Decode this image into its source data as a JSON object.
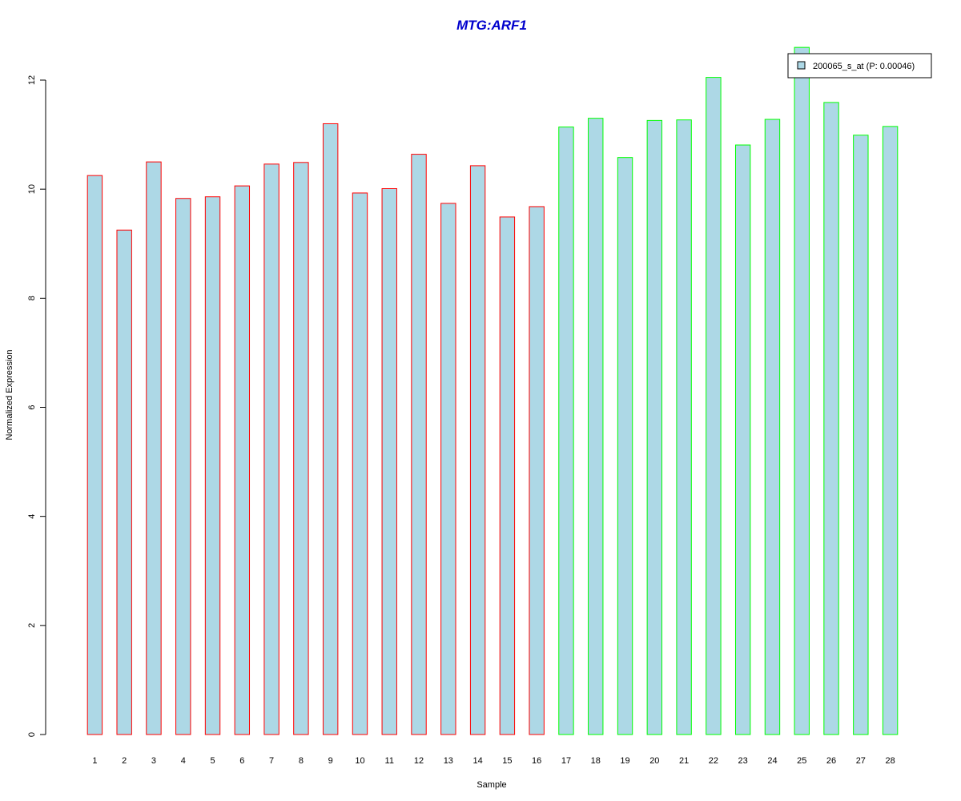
{
  "chart_data": {
    "type": "bar",
    "title": "MTG:ARF1",
    "xlabel": "Sample",
    "ylabel": "Normalized Expression",
    "categories": [
      "1",
      "2",
      "3",
      "4",
      "5",
      "6",
      "7",
      "8",
      "9",
      "10",
      "11",
      "12",
      "13",
      "14",
      "15",
      "16",
      "17",
      "18",
      "19",
      "20",
      "21",
      "22",
      "23",
      "24",
      "25",
      "26",
      "27",
      "28"
    ],
    "series": [
      {
        "name": "200065_s_at (P: 0.00046)",
        "values": [
          10.25,
          9.25,
          10.5,
          9.83,
          9.86,
          10.06,
          10.46,
          10.49,
          11.2,
          9.93,
          10.01,
          10.64,
          9.74,
          10.43,
          9.49,
          9.68,
          11.14,
          11.3,
          10.58,
          11.26,
          11.27,
          12.05,
          10.81,
          11.28,
          12.6,
          11.59,
          10.99,
          11.15
        ]
      }
    ],
    "group_outline": [
      "red",
      "red",
      "red",
      "red",
      "red",
      "red",
      "red",
      "red",
      "red",
      "red",
      "red",
      "red",
      "red",
      "red",
      "red",
      "red",
      "green",
      "green",
      "green",
      "green",
      "green",
      "green",
      "green",
      "green",
      "green",
      "green",
      "green",
      "green"
    ],
    "ylim": [
      0,
      12
    ],
    "yticks": [
      "0",
      "2",
      "4",
      "6",
      "8",
      "10",
      "12"
    ],
    "grid": false,
    "legend_position": "top-right",
    "colors": {
      "bar_fill": "#add8e6",
      "outline_group1": "#ff0000",
      "outline_group2": "#00ff00",
      "title": "#0000cd"
    }
  }
}
